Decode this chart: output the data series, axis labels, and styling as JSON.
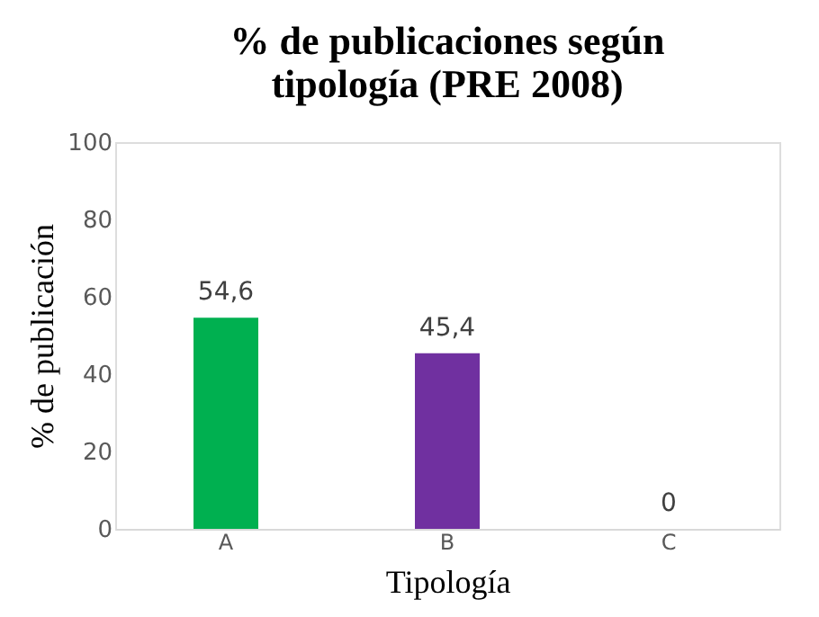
{
  "chart_data": {
    "type": "bar",
    "title": "% de publicaciones según tipología (PRE 2008)",
    "xlabel": "Tipología",
    "ylabel": "% de publicación",
    "categories": [
      "A",
      "B",
      "C"
    ],
    "values": [
      54.6,
      45.4,
      0
    ],
    "colors": [
      "#00b050",
      "#7030a0",
      "#4472c4"
    ],
    "value_labels": [
      "54,6",
      "45,4",
      "0"
    ],
    "ylim": [
      0,
      100
    ],
    "yticks": [
      0,
      20,
      40,
      60,
      80,
      100
    ],
    "grid": false,
    "legend": false
  }
}
